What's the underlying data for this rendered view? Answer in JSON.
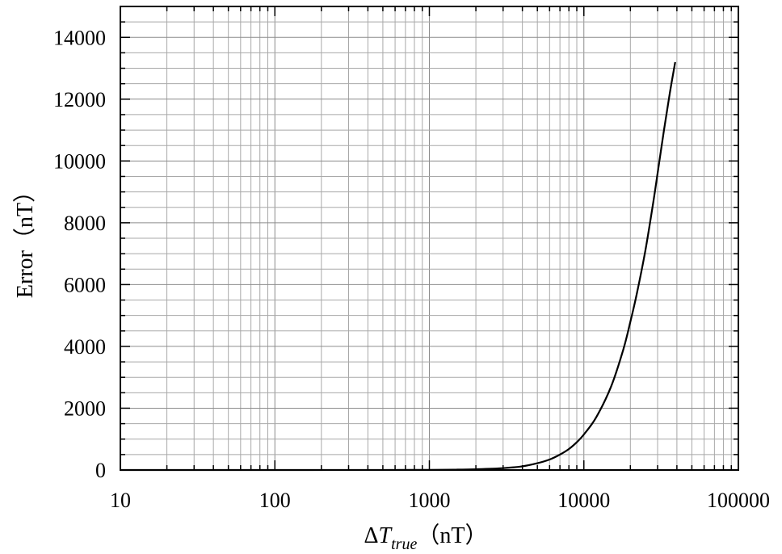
{
  "chart_data": {
    "type": "line",
    "xscale": "log",
    "xlim": [
      10,
      100000
    ],
    "ylim": [
      0,
      15000
    ],
    "grid": true,
    "xlabel": {
      "delta": "Δ",
      "var": "T",
      "sub": "true",
      "unit": "（nT）"
    },
    "ylabel": "Error（nT）",
    "x_ticks": [
      "10",
      "100",
      "1000",
      "10000",
      "100000"
    ],
    "x_tick_values": [
      10,
      100,
      1000,
      10000,
      100000
    ],
    "y_ticks": [
      "0",
      "2000",
      "4000",
      "6000",
      "8000",
      "10000",
      "12000",
      "14000"
    ],
    "y_tick_values": [
      0,
      2000,
      4000,
      6000,
      8000,
      10000,
      12000,
      14000
    ],
    "series": [
      {
        "color": "#000000",
        "x": [
          10,
          100,
          500,
          1000,
          1500,
          2000,
          3000,
          4000,
          5000,
          6000,
          7000,
          8000,
          9000,
          10000,
          12000,
          15000,
          18000,
          20000,
          22000,
          25000,
          28000,
          30000,
          33000,
          36000,
          39000
        ],
        "y": [
          0,
          0,
          1,
          5,
          12,
          25,
          60,
          120,
          220,
          340,
          500,
          680,
          900,
          1150,
          1700,
          2700,
          3900,
          4800,
          5700,
          7100,
          8600,
          9600,
          11000,
          12200,
          13200
        ]
      }
    ]
  }
}
